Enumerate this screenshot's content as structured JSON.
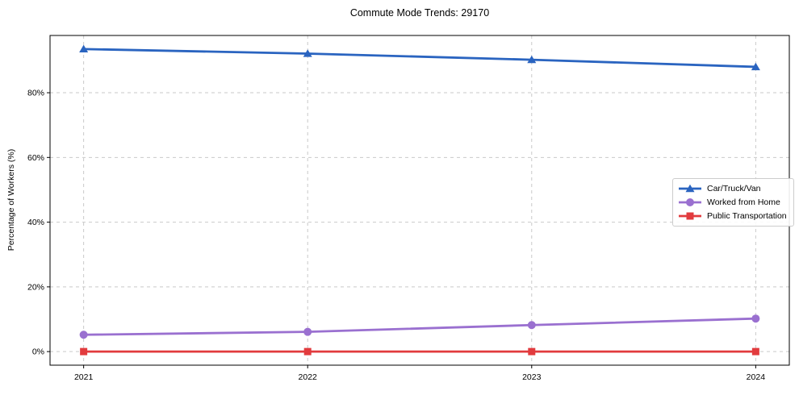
{
  "chart_data": {
    "type": "line",
    "title": "Commute Mode Trends: 29170",
    "xlabel": "",
    "ylabel": "Percentage of Workers (%)",
    "x": [
      2021,
      2022,
      2023,
      2024
    ],
    "x_tick_labels": [
      "2021",
      "2022",
      "2023",
      "2024"
    ],
    "y_ticks": [
      0,
      20,
      40,
      60,
      80
    ],
    "y_tick_labels": [
      "0%",
      "20%",
      "40%",
      "60%",
      "80%"
    ],
    "xlim": [
      2020.85,
      2024.15
    ],
    "ylim": [
      -4.2,
      97.7
    ],
    "grid": true,
    "grid_style": "dashed",
    "legend_position": "right-center",
    "series": [
      {
        "name": "Car/Truck/Van",
        "color": "#2a64c0",
        "marker": "triangle",
        "values": [
          93.5,
          92.1,
          90.2,
          88.0
        ]
      },
      {
        "name": "Worked from Home",
        "color": "#9a70d0",
        "marker": "circle",
        "values": [
          5.2,
          6.1,
          8.2,
          10.2
        ]
      },
      {
        "name": "Public Transportation",
        "color": "#e23b3e",
        "marker": "square",
        "values": [
          0.0,
          0.0,
          0.0,
          0.0
        ]
      }
    ]
  },
  "colors": {
    "grid": "#c9c9c9",
    "spine": "#000000",
    "tick_text": "#000000",
    "legend_border": "#cccccc",
    "background": "#ffffff"
  }
}
